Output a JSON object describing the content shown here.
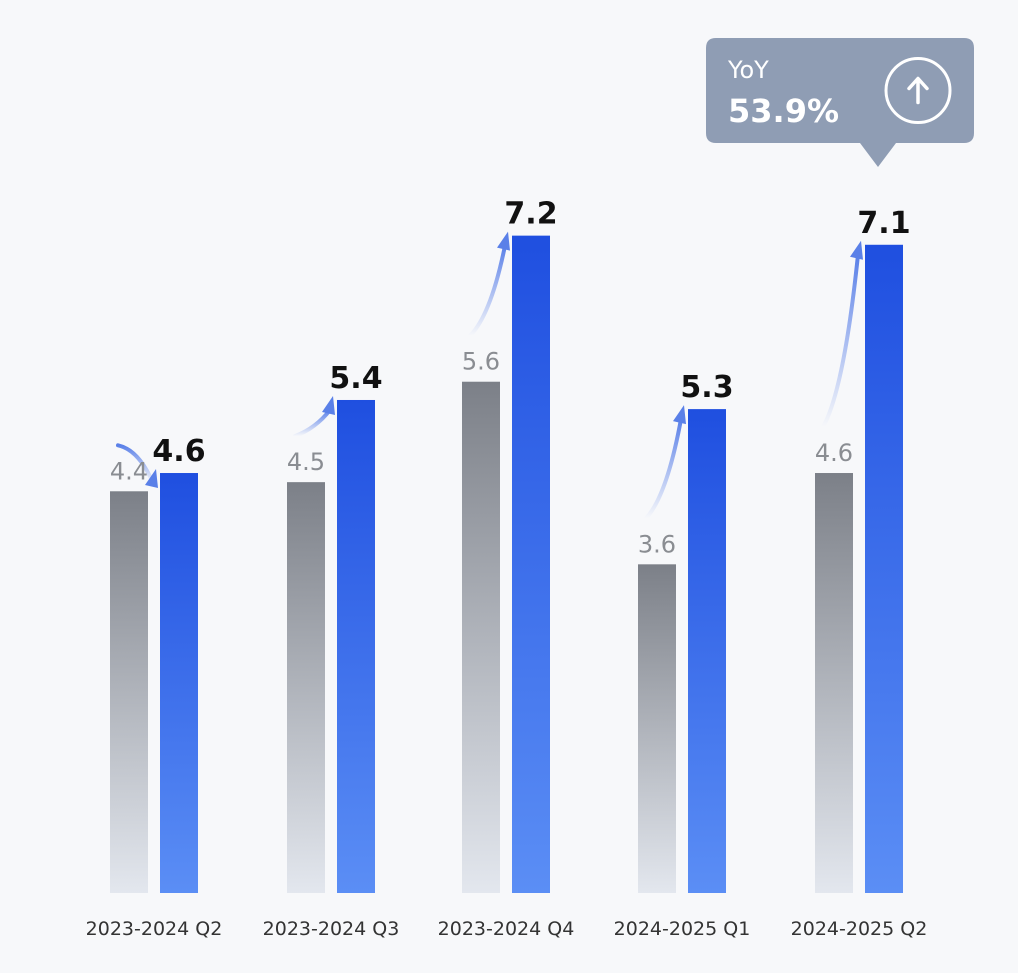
{
  "chart_data": {
    "type": "bar",
    "title": "",
    "xlabel": "",
    "ylabel": "",
    "categories": [
      "2023-2024 Q2",
      "2023-2024 Q3",
      "2023-2024 Q4",
      "2024-2025 Q1",
      "2024-2025 Q2"
    ],
    "series": [
      {
        "values": [
          4.4,
          4.5,
          5.6,
          3.6,
          4.6
        ]
      },
      {
        "values": [
          4.6,
          5.4,
          7.2,
          5.3,
          7.1
        ]
      }
    ],
    "ylim": [
      0,
      8
    ],
    "grid": false,
    "legend": "none",
    "colors": {
      "prev_top": "#7c8088",
      "prev_bottom": "#e3e7ee",
      "cur_top": "#1f4fe0",
      "cur_bottom": "#5b8ef5",
      "arrow": "#5a80e8"
    },
    "annotation": {
      "label": "YoY",
      "value": "53.9%",
      "category_index": 4,
      "icon": "arrow-up-circle-icon",
      "color": "#8f9db4"
    }
  }
}
